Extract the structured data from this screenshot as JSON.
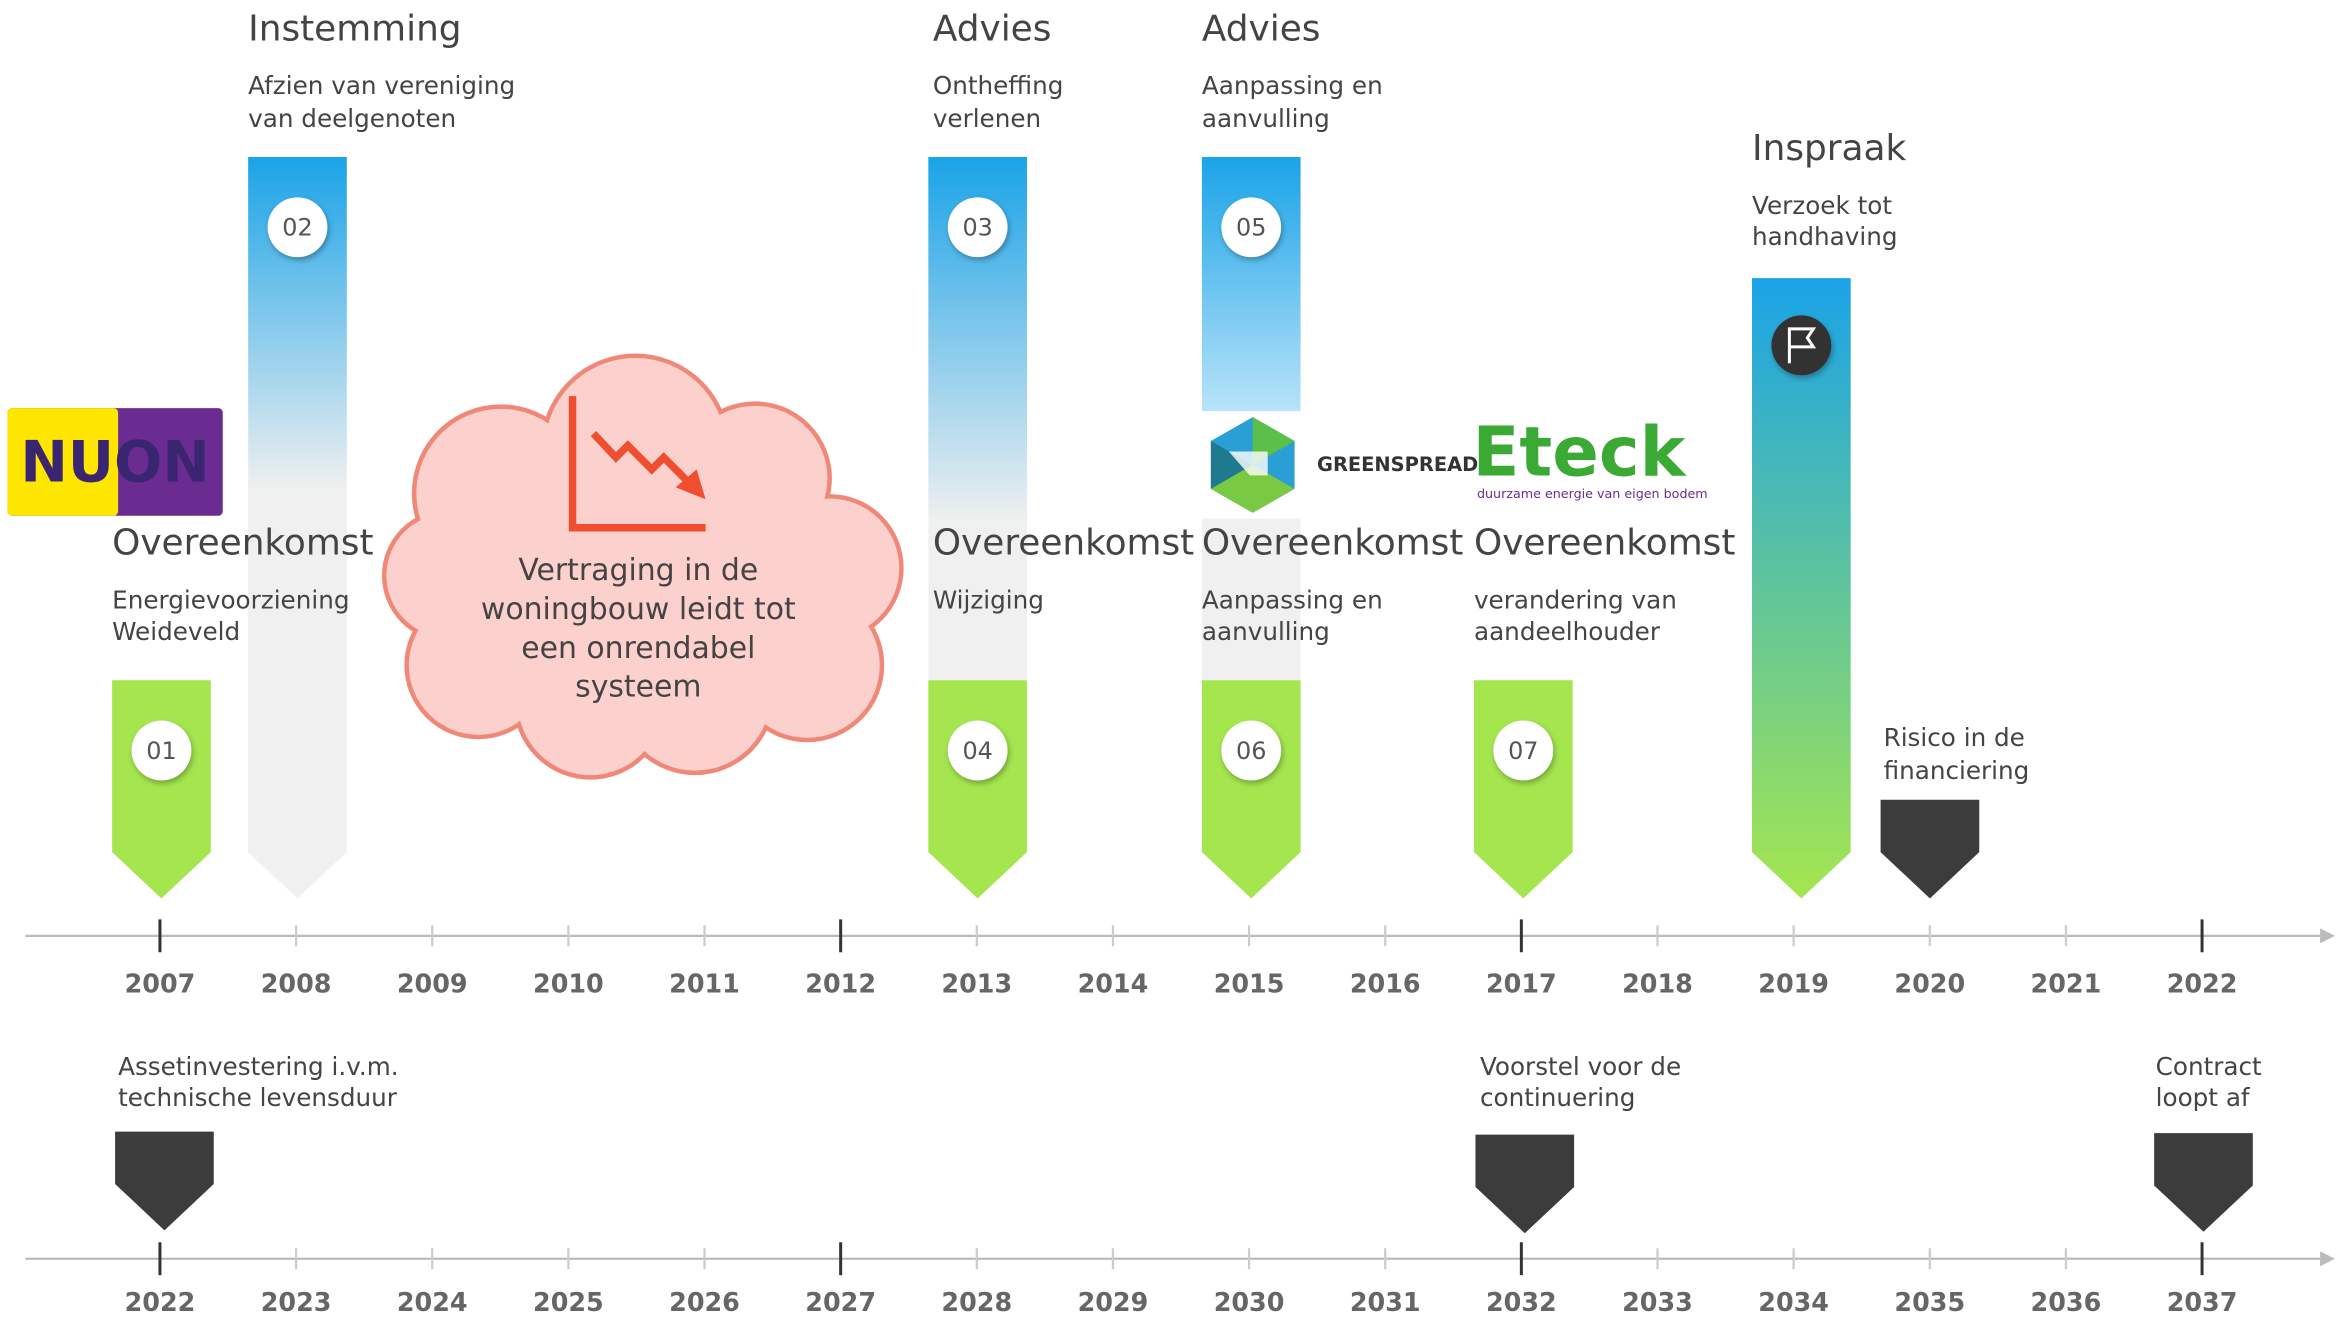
{
  "axes": [
    {
      "years": [
        2007,
        2008,
        2009,
        2010,
        2011,
        2012,
        2013,
        2014,
        2015,
        2016,
        2017,
        2018,
        2019,
        2020,
        2021,
        2022
      ]
    },
    {
      "years": [
        2022,
        2023,
        2024,
        2025,
        2026,
        2027,
        2028,
        2029,
        2030,
        2031,
        2032,
        2033,
        2034,
        2035,
        2036,
        2037
      ]
    }
  ],
  "events": [
    {
      "number": "01",
      "title": "Overeenkomst",
      "lines": [
        "Energievoorziening",
        "Weideveld"
      ]
    },
    {
      "number": "02",
      "title": "Instemming",
      "lines": [
        "Afzien van vereniging",
        "van deelgenoten"
      ]
    },
    {
      "number": "03",
      "title": "Advies",
      "lines": [
        "Ontheffing",
        "verlenen"
      ]
    },
    {
      "number": "04",
      "title": "Overeenkomst",
      "lines": [
        "Wijziging"
      ]
    },
    {
      "number": "05",
      "title": "Advies",
      "lines": [
        "Aanpassing en",
        "aanvulling"
      ]
    },
    {
      "number": "06",
      "title": "Overeenkomst",
      "lines": [
        "Aanpassing en",
        "aanvulling"
      ]
    },
    {
      "number": "07",
      "title": "Overeenkomst",
      "lines": [
        "verandering van",
        "aandeelhouder"
      ]
    },
    {
      "title": "Inspraak",
      "lines": [
        "Verzoek tot",
        "handhaving"
      ]
    }
  ],
  "risks": [
    {
      "lines": [
        "Risico in de",
        "financiering"
      ]
    },
    {
      "lines": [
        "Assetinvestering i.v.m.",
        "technische levensduur"
      ]
    },
    {
      "lines": [
        "Voorstel voor de",
        "continuering"
      ]
    },
    {
      "lines": [
        "Contract",
        "loopt af"
      ]
    }
  ],
  "cloud": {
    "lines": [
      "Vertraging in de",
      "woningbouw leidt tot",
      "een onrendabel",
      "systeem"
    ]
  },
  "logos": {
    "nuon": "NUON",
    "greenspread": "GREENSPREAD",
    "eteck": "Eteck",
    "eteck_tagline": "duurzame energie van eigen bodem"
  }
}
